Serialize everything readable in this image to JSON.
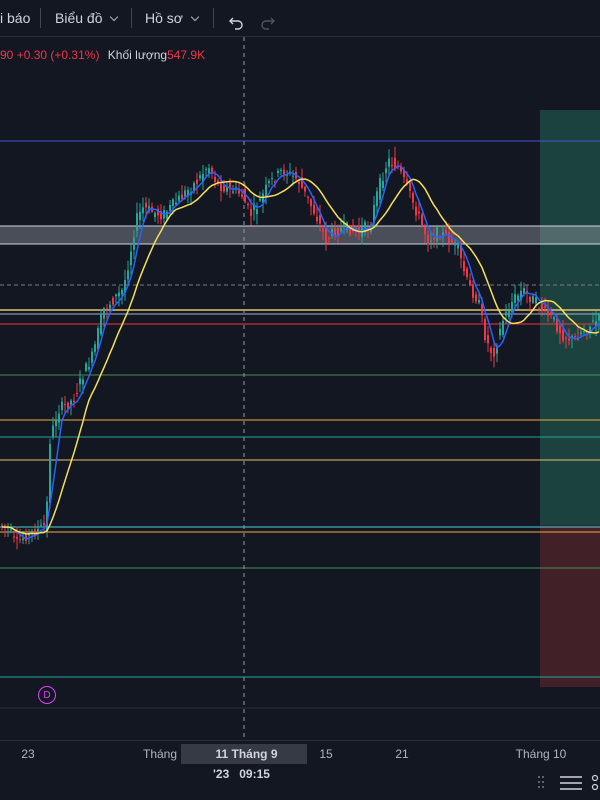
{
  "toolbar": {
    "alert_label": "i báo",
    "chart_label": "Biểu đồ",
    "profile_label": "Hồ sơ"
  },
  "legend": {
    "price": "90",
    "change": "+0.30",
    "change_pct": "(+0.31%)",
    "volume_label": "Khối lượng",
    "volume_value": "547.9K"
  },
  "xaxis": {
    "ticks": [
      {
        "label": "23"
      },
      {
        "label": "Tháng"
      },
      {
        "label": "15"
      },
      {
        "label": "21"
      },
      {
        "label": "Tháng 10"
      }
    ],
    "crosshair_date": "11 Tháng 9 '23",
    "crosshair_time": "09:15"
  },
  "badge": "D",
  "icons": {
    "undo": "undo-icon",
    "redo": "redo-icon",
    "drag": "drag-handle-icon",
    "settings": "settings-icon"
  },
  "colors": {
    "background": "#131722",
    "up": "#26a69a",
    "down": "#f23645",
    "ma_fast": "#2962ff",
    "ma_slow": "#f5e05a",
    "profit_zone": "#1e4a45",
    "loss_zone": "#4a2228"
  }
}
